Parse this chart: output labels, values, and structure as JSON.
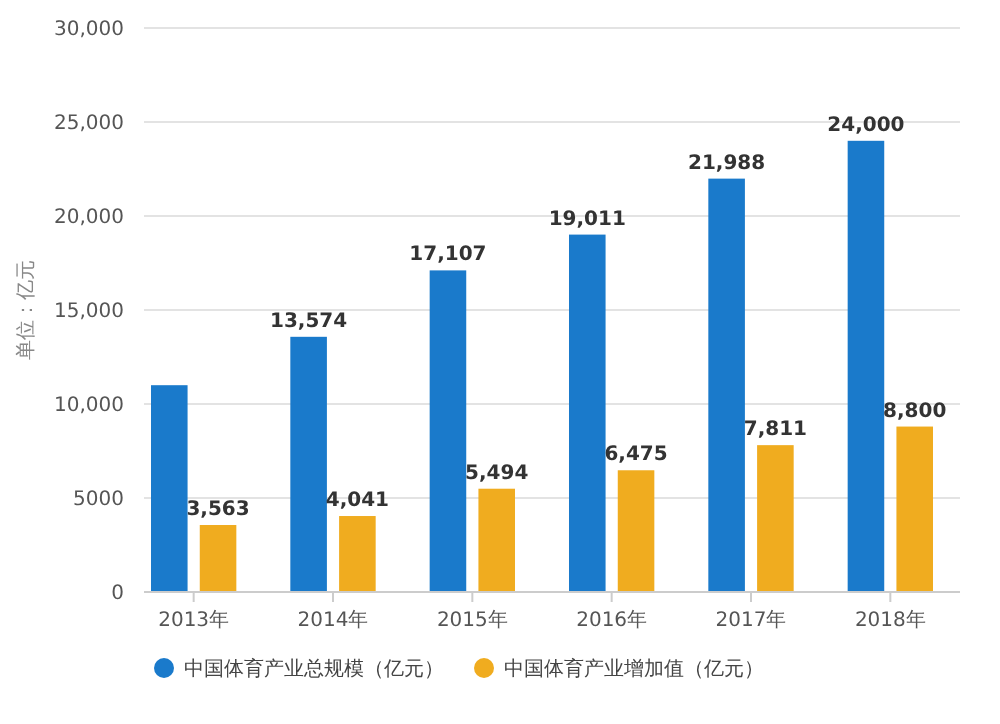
{
  "chart_data": {
    "type": "bar",
    "ylabel": "单位：亿元",
    "categories": [
      "2013年",
      "2014年",
      "2015年",
      "2016年",
      "2017年",
      "2018年"
    ],
    "series": [
      {
        "name": "中国体育产业总规模（亿元）",
        "color": "#1a7acb",
        "values": [
          11000,
          13574,
          17107,
          19011,
          21988,
          24000
        ],
        "value_labels": [
          null,
          "13,574",
          "17,107",
          "19,011",
          "21,988",
          "24,000"
        ]
      },
      {
        "name": "中国体育产业增加值（亿元）",
        "color": "#f0ac1f",
        "values": [
          3563,
          4041,
          5494,
          6475,
          7811,
          8800
        ],
        "value_labels": [
          "3,563",
          "4,041",
          "5,494",
          "6,475",
          "7,811",
          "8,800"
        ]
      }
    ],
    "ylim": [
      0,
      30000
    ],
    "yticks": [
      0,
      5000,
      {
        "value": 10000,
        "label": "10,000"
      },
      {
        "value": 15000,
        "label": "15,000"
      },
      {
        "value": 20000,
        "label": "20,000"
      },
      {
        "value": 25000,
        "label": "25,000"
      },
      {
        "value": 30000,
        "label": "30,000"
      }
    ],
    "grid": "y",
    "legend": "bottom"
  }
}
